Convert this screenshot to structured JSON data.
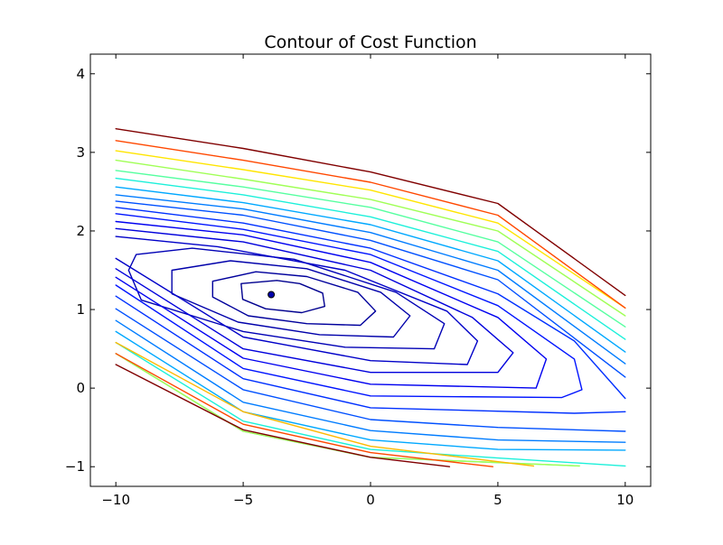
{
  "chart_data": {
    "type": "contour",
    "title": "Contour of Cost Function",
    "xlabel": "",
    "ylabel": "",
    "xlim": [
      -11,
      11
    ],
    "ylim": [
      -1.25,
      4.25
    ],
    "x_ticks": [
      -10,
      -5,
      0,
      5,
      10
    ],
    "y_ticks": [
      -1,
      0,
      1,
      2,
      3,
      4
    ],
    "x_tick_labels": [
      "−10",
      "−5",
      "0",
      "5",
      "10"
    ],
    "y_tick_labels": [
      "−1",
      "0",
      "1",
      "2",
      "3",
      "4"
    ],
    "grid": false,
    "legend": "none",
    "domain": {
      "x": [
        -10,
        10
      ],
      "y": [
        -1,
        4
      ]
    },
    "minimum": {
      "x": -3.9,
      "y": 1.19,
      "color": "#0000aa"
    },
    "contour_series": [
      {
        "level": 1,
        "color": "#00008f",
        "points": [
          [
            -3.68,
            1.37
          ],
          [
            -2.78,
            1.33
          ],
          [
            -1.88,
            1.21
          ],
          [
            -1.8,
            1.04
          ],
          [
            -2.7,
            0.96
          ],
          [
            -4.12,
            1.01
          ],
          [
            -5.02,
            1.13
          ],
          [
            -5.08,
            1.33
          ],
          [
            -3.68,
            1.37
          ]
        ]
      },
      {
        "level": 2,
        "color": "#00009c",
        "points": [
          [
            -4.5,
            1.48
          ],
          [
            -2.5,
            1.42
          ],
          [
            -0.5,
            1.22
          ],
          [
            0.2,
            0.98
          ],
          [
            -0.4,
            0.8
          ],
          [
            -2.5,
            0.82
          ],
          [
            -4.8,
            0.92
          ],
          [
            -6.2,
            1.16
          ],
          [
            -6.2,
            1.36
          ],
          [
            -4.5,
            1.48
          ]
        ]
      },
      {
        "level": 3,
        "color": "#0000aa",
        "points": [
          [
            -5.5,
            1.62
          ],
          [
            -2.5,
            1.52
          ],
          [
            0.4,
            1.22
          ],
          [
            1.55,
            0.92
          ],
          [
            0.9,
            0.65
          ],
          [
            -2.0,
            0.68
          ],
          [
            -5.2,
            0.84
          ],
          [
            -7.8,
            1.2
          ],
          [
            -7.8,
            1.5
          ],
          [
            -5.5,
            1.62
          ]
        ]
      },
      {
        "level": 4,
        "color": "#0000b5",
        "points": [
          [
            -7.0,
            1.78
          ],
          [
            -3.0,
            1.64
          ],
          [
            1.0,
            1.22
          ],
          [
            2.9,
            0.82
          ],
          [
            2.5,
            0.5
          ],
          [
            -1.0,
            0.52
          ],
          [
            -5.0,
            0.72
          ],
          [
            -9.0,
            1.12
          ],
          [
            -9.5,
            1.5
          ],
          [
            -9.2,
            1.7
          ],
          [
            -7.0,
            1.78
          ]
        ]
      },
      {
        "level": 5,
        "color": "#0000c8",
        "points": [
          [
            -10,
            1.93
          ],
          [
            -6,
            1.8
          ],
          [
            -1,
            1.5
          ],
          [
            3,
            0.98
          ],
          [
            4.2,
            0.6
          ],
          [
            3.8,
            0.3
          ],
          [
            0,
            0.35
          ],
          [
            -5,
            0.65
          ],
          [
            -10,
            1.65
          ]
        ]
      },
      {
        "level": 6,
        "color": "#0000dc",
        "points": [
          [
            -10,
            2.03
          ],
          [
            -5,
            1.86
          ],
          [
            0,
            1.5
          ],
          [
            4,
            0.9
          ],
          [
            5.6,
            0.45
          ],
          [
            5,
            0.2
          ],
          [
            0,
            0.2
          ],
          [
            -5,
            0.5
          ],
          [
            -10,
            1.52
          ]
        ]
      },
      {
        "level": 7,
        "color": "#0000f0",
        "points": [
          [
            -10,
            2.12
          ],
          [
            -5,
            1.95
          ],
          [
            0,
            1.6
          ],
          [
            5,
            0.9
          ],
          [
            6.9,
            0.37
          ],
          [
            6.5,
            0.0
          ],
          [
            0,
            0.05
          ],
          [
            -5,
            0.38
          ],
          [
            -10,
            1.41
          ]
        ]
      },
      {
        "level": 8,
        "color": "#0014ff",
        "points": [
          [
            -10,
            2.22
          ],
          [
            -5,
            2.02
          ],
          [
            0,
            1.7
          ],
          [
            5,
            1.05
          ],
          [
            8.0,
            0.37
          ],
          [
            8.3,
            -0.02
          ],
          [
            7.5,
            -0.12
          ],
          [
            0,
            -0.1
          ],
          [
            -5,
            0.25
          ],
          [
            -10,
            1.31
          ]
        ]
      },
      {
        "level": 9,
        "color": "#0030ff",
        "points": [
          [
            -10,
            2.3
          ],
          [
            -5,
            2.1
          ],
          [
            0,
            1.78
          ],
          [
            5,
            1.2
          ],
          [
            8,
            0.6
          ],
          [
            10,
            -0.13
          ]
        ]
      },
      {
        "level": 10,
        "color": "#0030ff",
        "points": [
          [
            10,
            -0.3
          ],
          [
            8,
            -0.32
          ],
          [
            0,
            -0.25
          ],
          [
            -5,
            0.12
          ],
          [
            -10,
            1.17
          ]
        ]
      },
      {
        "level": 11,
        "color": "#0050ff",
        "points": [
          [
            -10,
            2.38
          ],
          [
            -5,
            2.2
          ],
          [
            0,
            1.88
          ],
          [
            5,
            1.38
          ],
          [
            10,
            0.14
          ]
        ]
      },
      {
        "level": 12,
        "color": "#0050ff",
        "points": [
          [
            -10,
            1.01
          ],
          [
            -5,
            -0.02
          ],
          [
            0,
            -0.4
          ],
          [
            5,
            -0.5
          ],
          [
            10,
            -0.55
          ]
        ]
      },
      {
        "level": 13,
        "color": "#007cff",
        "points": [
          [
            -10,
            2.46
          ],
          [
            -5,
            2.28
          ],
          [
            0,
            1.98
          ],
          [
            5,
            1.5
          ],
          [
            10,
            0.31
          ]
        ]
      },
      {
        "level": 14,
        "color": "#007cff",
        "points": [
          [
            -10,
            0.86
          ],
          [
            -5,
            -0.18
          ],
          [
            0,
            -0.54
          ],
          [
            5,
            -0.66
          ],
          [
            10,
            -0.69
          ]
        ]
      },
      {
        "level": 15,
        "color": "#00a8ff",
        "points": [
          [
            -10,
            2.56
          ],
          [
            -5,
            2.36
          ],
          [
            0,
            2.08
          ],
          [
            5,
            1.62
          ],
          [
            10,
            0.46
          ]
        ]
      },
      {
        "level": 16,
        "color": "#00a8ff",
        "points": [
          [
            -10,
            0.72
          ],
          [
            -5,
            -0.3
          ],
          [
            0,
            -0.66
          ],
          [
            5,
            -0.78
          ],
          [
            10,
            -0.79
          ]
        ]
      },
      {
        "level": 17,
        "color": "#1cf0da",
        "points": [
          [
            -10,
            2.67
          ],
          [
            -5,
            2.46
          ],
          [
            0,
            2.18
          ],
          [
            5,
            1.74
          ],
          [
            10,
            0.62
          ]
        ]
      },
      {
        "level": 18,
        "color": "#1cf0da",
        "points": [
          [
            -10,
            0.58
          ],
          [
            -5,
            -0.42
          ],
          [
            0,
            -0.78
          ],
          [
            5,
            -0.89
          ],
          [
            10,
            -0.99
          ]
        ]
      },
      {
        "level": 19,
        "color": "#56ffa0",
        "points": [
          [
            -10,
            2.77
          ],
          [
            -5,
            2.56
          ],
          [
            0,
            2.3
          ],
          [
            5,
            1.86
          ],
          [
            10,
            0.78
          ]
        ]
      },
      {
        "level": 20,
        "color": "#56ffa0",
        "points": [
          [
            -10,
            0.44
          ],
          [
            -5,
            -0.55
          ],
          [
            0,
            -0.88
          ],
          [
            8.2,
            -0.99
          ]
        ]
      },
      {
        "level": 21,
        "color": "#a0ff56",
        "points": [
          [
            -10,
            2.9
          ],
          [
            -5,
            2.66
          ],
          [
            0,
            2.4
          ],
          [
            5,
            2.0
          ],
          [
            10,
            0.92
          ]
        ]
      },
      {
        "level": 22,
        "color": "#a0ff56",
        "points": [
          [
            -10,
            0.44
          ],
          [
            -5,
            -0.55
          ],
          [
            0,
            -0.88
          ],
          [
            8.2,
            -0.99
          ]
        ]
      },
      {
        "level": 23,
        "color": "#ffe500",
        "points": [
          [
            -10,
            3.02
          ],
          [
            -5,
            2.78
          ],
          [
            0,
            2.52
          ],
          [
            5,
            2.1
          ],
          [
            10,
            1.02
          ]
        ]
      },
      {
        "level": 24,
        "color": "#ffb900",
        "points": [
          [
            -10,
            0.58
          ],
          [
            -5,
            -0.3
          ],
          [
            0,
            -0.74
          ],
          [
            6.4,
            -0.99
          ]
        ]
      },
      {
        "level": 25,
        "color": "#ff4800",
        "points": [
          [
            -10,
            3.15
          ],
          [
            -5,
            2.9
          ],
          [
            0,
            2.62
          ],
          [
            5,
            2.2
          ],
          [
            10,
            1.02
          ]
        ]
      },
      {
        "level": 26,
        "color": "#ff4800",
        "points": [
          [
            -10,
            0.44
          ],
          [
            -5,
            -0.46
          ],
          [
            0,
            -0.82
          ],
          [
            4.8,
            -1.0
          ]
        ]
      },
      {
        "level": 27,
        "color": "#800000",
        "points": [
          [
            -10,
            3.3
          ],
          [
            -5,
            3.05
          ],
          [
            0,
            2.75
          ],
          [
            5,
            2.35
          ],
          [
            10,
            1.18
          ]
        ]
      },
      {
        "level": 28,
        "color": "#800000",
        "points": [
          [
            -10,
            0.3
          ],
          [
            -5,
            -0.53
          ],
          [
            0,
            -0.88
          ],
          [
            3.1,
            -1.0
          ]
        ]
      }
    ]
  }
}
